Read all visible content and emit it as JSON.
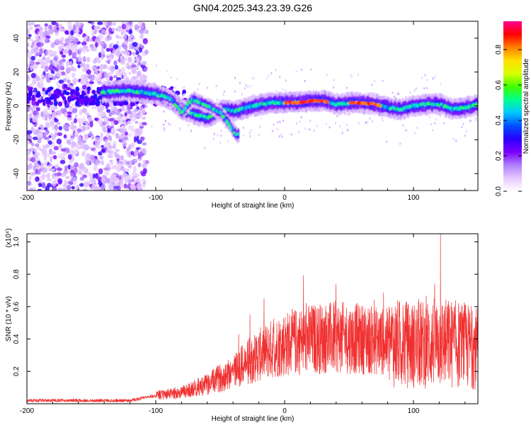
{
  "figure_title": "GN04.2025.343.23.39.G26",
  "chart_data": [
    {
      "type": "heatmap",
      "name": "spectrogram",
      "xlabel": "Height of straight line (km)",
      "ylabel": "Frequency (Hz)",
      "xlim": [
        -200,
        150
      ],
      "ylim": [
        -50,
        50
      ],
      "xticks": [
        -200,
        -100,
        0,
        100
      ],
      "yticks": [
        -40,
        -20,
        0,
        20,
        40
      ],
      "colorbar": {
        "label": "Normalized spectral amplitude",
        "range": [
          0,
          0.96
        ],
        "ticks": [
          "0.0",
          "0.2",
          "0.4",
          "0.6",
          "0.8"
        ],
        "colormap": [
          "#ffffff",
          "#e6c8ff",
          "#b080ff",
          "#7a00ff",
          "#2a00ff",
          "#0050ff",
          "#00c8ff",
          "#00ff90",
          "#40ff00",
          "#d8ff00",
          "#ffe000",
          "#ff8000",
          "#ff0000",
          "#ff0090"
        ]
      },
      "noise_region_km": [
        -200,
        -107
      ],
      "ridge": {
        "description_points_km_hz": [
          [
            -142,
            8
          ],
          [
            -120,
            9
          ],
          [
            -105,
            8
          ],
          [
            -95,
            6
          ],
          [
            -88,
            4
          ],
          [
            -80,
            -4
          ],
          [
            -72,
            4
          ],
          [
            -60,
            0
          ],
          [
            -50,
            -4
          ],
          [
            -44,
            -10
          ],
          [
            -38,
            -17
          ]
        ],
        "main_points_km_hz": [
          [
            -142,
            8
          ],
          [
            -125,
            9
          ],
          [
            -110,
            8
          ],
          [
            -100,
            7
          ],
          [
            -90,
            4
          ],
          [
            -80,
            -2
          ],
          [
            -70,
            -5
          ],
          [
            -60,
            -7
          ],
          [
            -48,
            -2
          ],
          [
            -38,
            -3
          ],
          [
            -25,
            0
          ],
          [
            -10,
            2
          ],
          [
            0,
            2
          ],
          [
            10,
            2
          ],
          [
            20,
            3
          ],
          [
            30,
            3
          ],
          [
            40,
            1
          ],
          [
            55,
            2
          ],
          [
            70,
            1
          ],
          [
            80,
            -1
          ],
          [
            90,
            -2
          ],
          [
            100,
            0
          ],
          [
            110,
            1
          ],
          [
            120,
            1
          ],
          [
            130,
            -2
          ],
          [
            140,
            -1
          ],
          [
            150,
            1
          ]
        ],
        "peak_segments_km": [
          [
            0,
            35
          ],
          [
            50,
            75
          ]
        ]
      }
    },
    {
      "type": "line",
      "name": "snr",
      "xlabel": "Height of straight line (km)",
      "ylabel": "SNR (10 * v/v)",
      "scale_note": "(x10⁴)",
      "xlim": [
        -200,
        150
      ],
      "ylim": [
        0,
        1.05
      ],
      "xticks": [
        -200,
        -100,
        0,
        100
      ],
      "yticks": [
        0.2,
        0.4,
        0.6,
        0.8,
        1.0
      ],
      "color": "#f03030",
      "envelope_points_km": [
        [
          -200,
          0.02
        ],
        [
          -120,
          0.02
        ],
        [
          -100,
          0.05
        ],
        [
          -80,
          0.07
        ],
        [
          -60,
          0.12
        ],
        [
          -45,
          0.18
        ],
        [
          -30,
          0.25
        ],
        [
          -20,
          0.3
        ],
        [
          -10,
          0.34
        ],
        [
          0,
          0.37
        ],
        [
          20,
          0.4
        ],
        [
          40,
          0.41
        ],
        [
          60,
          0.4
        ],
        [
          80,
          0.38
        ],
        [
          100,
          0.36
        ],
        [
          120,
          0.38
        ],
        [
          140,
          0.36
        ],
        [
          150,
          0.34
        ]
      ],
      "max": {
        "x": 121,
        "y": 1.05
      }
    }
  ]
}
